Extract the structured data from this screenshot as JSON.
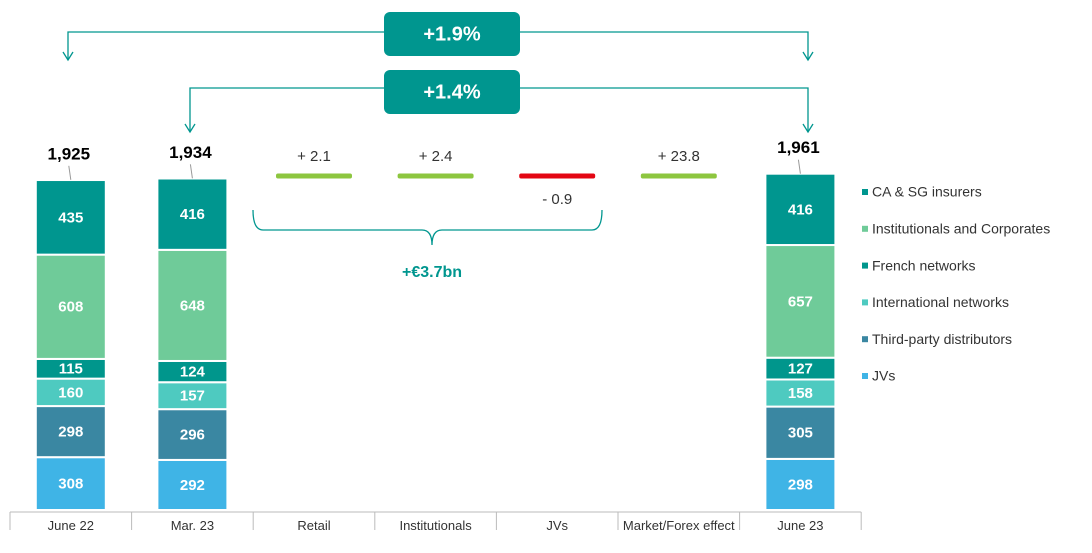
{
  "chart_data": {
    "type": "stacked_bar",
    "categories": [
      "June 22",
      "Mar. 23",
      "Retail",
      "Institutionals",
      "JVs",
      "Market/Forex effect",
      "June 23"
    ],
    "series": [
      {
        "name": "JVs",
        "color": "#3fb4e6",
        "values": [
          308,
          292,
          null,
          null,
          null,
          null,
          298
        ]
      },
      {
        "name": "Third-party distributors",
        "color": "#3a87a2",
        "values": [
          298,
          296,
          null,
          null,
          null,
          null,
          305
        ]
      },
      {
        "name": "International networks",
        "color": "#4ecac0",
        "values": [
          160,
          157,
          null,
          null,
          null,
          null,
          158
        ]
      },
      {
        "name": "French networks",
        "color": "#00968c",
        "values": [
          115,
          124,
          null,
          null,
          null,
          null,
          127
        ]
      },
      {
        "name": "Institutionals and Corporates",
        "color": "#6fcb99",
        "values": [
          608,
          648,
          null,
          null,
          null,
          null,
          657
        ]
      },
      {
        "name": "CA & SG insurers",
        "color": "#00968f",
        "values": [
          435,
          416,
          null,
          null,
          null,
          null,
          416
        ]
      }
    ],
    "totals": [
      1925,
      1934,
      null,
      null,
      null,
      null,
      1961
    ],
    "total_labels": [
      "1,925",
      "1,934",
      null,
      null,
      null,
      null,
      "1,961"
    ],
    "deltas": [
      null,
      null,
      2.1,
      2.4,
      -0.9,
      23.8,
      null
    ],
    "delta_labels": [
      null,
      null,
      "+ 2.1",
      "+ 2.4",
      "- 0.9",
      "+ 23.8",
      null
    ],
    "delta_colors": {
      "up": "#8dc63f",
      "down": "#e30613"
    },
    "annotations": [
      "+1.9%",
      "+1.4%",
      "+€3.7bn"
    ],
    "ylim": [
      0,
      2000
    ]
  }
}
